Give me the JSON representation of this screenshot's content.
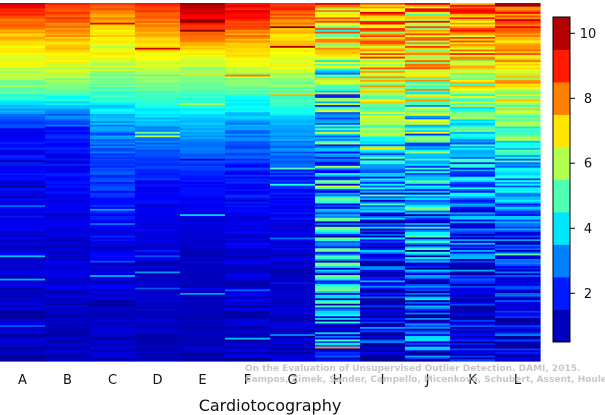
{
  "chart_data": {
    "type": "heatmap",
    "title": "",
    "xlabel": "Cardiotocography",
    "ylabel": "",
    "categories": [
      "A",
      "B",
      "C",
      "D",
      "E",
      "F",
      "G",
      "H",
      "I",
      "J",
      "K",
      "L"
    ],
    "colorbar": {
      "range": [
        0.5,
        10.5
      ],
      "ticks": [
        2,
        4,
        6,
        8,
        10
      ],
      "colormap": [
        "#00008f",
        "#0000ff",
        "#0080ff",
        "#00ffff",
        "#80ff80",
        "#ffff00",
        "#ff8000",
        "#ff0000",
        "#800000"
      ],
      "legend_position": "right"
    },
    "credit": {
      "line1": "On the Evaluation of Unsupervised Outlier Detection. DAMI, 2015.",
      "line2": "Campos, Zimek, Sander, Campello, Micenková, Schubert, Assent, Houle"
    },
    "columns_profile": [
      {
        "category": "A",
        "segments": [
          [
            0.0,
            9.5
          ],
          [
            0.08,
            7.5
          ],
          [
            0.17,
            6.5
          ],
          [
            0.25,
            5.0
          ],
          [
            0.31,
            3.0
          ],
          [
            0.36,
            1.8
          ],
          [
            0.6,
            1.5
          ],
          [
            0.85,
            1.1
          ],
          [
            1.0,
            1.0
          ]
        ],
        "noise": 0.45
      },
      {
        "category": "B",
        "segments": [
          [
            0.0,
            9.0
          ],
          [
            0.08,
            7.8
          ],
          [
            0.17,
            6.5
          ],
          [
            0.25,
            5.0
          ],
          [
            0.31,
            3.0
          ],
          [
            0.36,
            1.8
          ],
          [
            0.6,
            1.4
          ],
          [
            0.85,
            1.1
          ],
          [
            1.0,
            1.0
          ]
        ],
        "noise": 0.45
      },
      {
        "category": "C",
        "segments": [
          [
            0.0,
            8.5
          ],
          [
            0.08,
            7.2
          ],
          [
            0.17,
            6.3
          ],
          [
            0.25,
            4.8
          ],
          [
            0.33,
            3.4
          ],
          [
            0.45,
            2.4
          ],
          [
            0.6,
            1.7
          ],
          [
            0.85,
            1.1
          ],
          [
            1.0,
            1.0
          ]
        ],
        "noise": 0.45
      },
      {
        "category": "D",
        "segments": [
          [
            0.0,
            9.0
          ],
          [
            0.08,
            7.5
          ],
          [
            0.17,
            6.5
          ],
          [
            0.25,
            5.0
          ],
          [
            0.35,
            3.2
          ],
          [
            0.5,
            1.8
          ],
          [
            0.7,
            1.2
          ],
          [
            1.0,
            1.0
          ]
        ],
        "noise": 0.3
      },
      {
        "category": "E",
        "segments": [
          [
            0.0,
            10.0
          ],
          [
            0.06,
            9.0
          ],
          [
            0.14,
            6.8
          ],
          [
            0.23,
            5.2
          ],
          [
            0.35,
            3.5
          ],
          [
            0.5,
            1.8
          ],
          [
            0.7,
            1.1
          ],
          [
            1.0,
            1.0
          ]
        ],
        "noise": 0.25
      },
      {
        "category": "F",
        "segments": [
          [
            0.0,
            9.5
          ],
          [
            0.08,
            8.0
          ],
          [
            0.17,
            6.5
          ],
          [
            0.25,
            5.0
          ],
          [
            0.35,
            3.0
          ],
          [
            0.5,
            1.8
          ],
          [
            0.7,
            1.3
          ],
          [
            1.0,
            1.0
          ]
        ],
        "noise": 0.5
      },
      {
        "category": "G",
        "segments": [
          [
            0.0,
            9.0
          ],
          [
            0.08,
            7.5
          ],
          [
            0.17,
            6.5
          ],
          [
            0.25,
            5.2
          ],
          [
            0.35,
            3.5
          ],
          [
            0.5,
            2.0
          ],
          [
            0.7,
            1.3
          ],
          [
            1.0,
            1.0
          ]
        ],
        "noise": 0.45
      },
      {
        "category": "H",
        "segments": [
          [
            0.0,
            7.0
          ],
          [
            0.1,
            6.5
          ],
          [
            0.25,
            4.5
          ],
          [
            0.4,
            4.0
          ],
          [
            0.6,
            3.5
          ],
          [
            0.8,
            3.0
          ],
          [
            1.0,
            2.8
          ]
        ],
        "noise": 2.6
      },
      {
        "category": "I",
        "segments": [
          [
            0.0,
            8.0
          ],
          [
            0.2,
            7.0
          ],
          [
            0.4,
            4.0
          ],
          [
            0.6,
            2.5
          ],
          [
            0.8,
            1.8
          ],
          [
            1.0,
            1.3
          ]
        ],
        "noise": 1.8
      },
      {
        "category": "J",
        "segments": [
          [
            0.0,
            7.5
          ],
          [
            0.2,
            6.5
          ],
          [
            0.4,
            4.0
          ],
          [
            0.6,
            3.0
          ],
          [
            0.8,
            2.0
          ],
          [
            1.0,
            1.5
          ]
        ],
        "noise": 2.4
      },
      {
        "category": "K",
        "segments": [
          [
            0.0,
            8.5
          ],
          [
            0.2,
            6.5
          ],
          [
            0.4,
            3.8
          ],
          [
            0.6,
            2.5
          ],
          [
            0.8,
            1.8
          ],
          [
            1.0,
            1.2
          ]
        ],
        "noise": 1.5
      },
      {
        "category": "L",
        "segments": [
          [
            0.0,
            9.0
          ],
          [
            0.2,
            7.0
          ],
          [
            0.4,
            4.5
          ],
          [
            0.6,
            2.5
          ],
          [
            0.8,
            1.6
          ],
          [
            1.0,
            1.2
          ]
        ],
        "noise": 1.3
      }
    ],
    "rows_rendered": 200
  }
}
